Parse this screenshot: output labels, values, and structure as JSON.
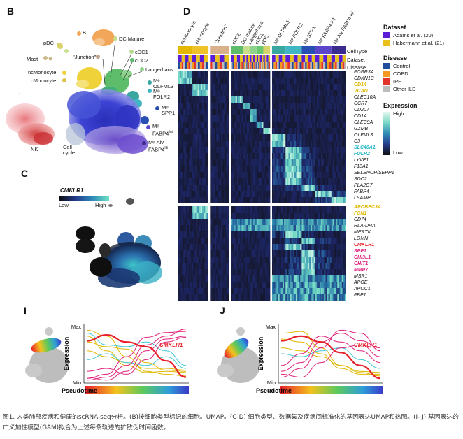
{
  "panels": {
    "B": "B",
    "C": "C",
    "D": "D",
    "I": "I",
    "J": "J"
  },
  "umap_b": {
    "labels": [
      "B",
      "pDC",
      "DC Mature",
      "cDC1",
      "cDC2",
      "Langerhans",
      "\"Junction\"",
      "Mast",
      "ncMonocyte",
      "cMonocyte",
      "T",
      "Mᵠ OLFML3",
      "Mᵠ FOLR2",
      "Mᵠ SPP1",
      "Mᵠ FABP4 Int",
      "Mᵠ Alv FABP4 Hi",
      "NK",
      "Cell cycle"
    ]
  },
  "umap_b_display": {
    "b": "B",
    "pdc": "pDC",
    "dcmature": "DC Mature",
    "cdc1": "cDC1",
    "cdc2": "cDC2",
    "langerhans": "Langerhans",
    "junction": "\"Junction\"",
    "mast": "Mast",
    "ncmono": "ncMonocyte",
    "cmono": "cMonocyte",
    "t": "T",
    "olfml3_a": "Mᵠ",
    "olfml3_b": "OLFML3",
    "folr2_a": "Mᵠ",
    "folr2_b": "FOLR2",
    "spp1_a": "Mᵠ",
    "spp1_b": "SPP1",
    "fabp4int_a": "Mᵠ",
    "fabp4int_b": "FABP4",
    "fabp4int_sup": "Int",
    "fabp4hi_a": "Mᵠ Alv",
    "fabp4hi_b": "FABP4",
    "fabp4hi_sup": "Hi",
    "nk": "NK",
    "cellcycle_a": "Cell",
    "cellcycle_b": "cycle"
  },
  "umap_c": {
    "gene": "CMKLR1",
    "low": "Low",
    "high": "High"
  },
  "heatmap": {
    "column_groups": [
      "ncMonocyte",
      "cMonocyte",
      "\"Junction\"",
      "cDC2",
      "DC mature",
      "Langerhans",
      "cDC1",
      "pDC",
      "Mᵠ OLFML3",
      "Mᵠ FOLR2",
      "Mᵠ SPP1",
      "Mᵠ FABP4 Int",
      "Mᵠ Alv FABP4 Hi"
    ],
    "row_annotations": [
      "CellType",
      "Dataset",
      "Disease"
    ],
    "genes": [
      {
        "name": "FCGR3A",
        "color": "#111111"
      },
      {
        "name": "CDKN1C",
        "color": "#111111"
      },
      {
        "name": "CD14",
        "color": "#e0b800"
      },
      {
        "name": "VCAN",
        "color": "#e0b800"
      },
      {
        "name": "CLEC10A",
        "color": "#111111"
      },
      {
        "name": "CCR7",
        "color": "#111111"
      },
      {
        "name": "CD207",
        "color": "#111111"
      },
      {
        "name": "CD1A",
        "color": "#111111"
      },
      {
        "name": "CLEC9A",
        "color": "#111111"
      },
      {
        "name": "GZMB",
        "color": "#111111"
      },
      {
        "name": "OLFML3",
        "color": "#111111"
      },
      {
        "name": "C3",
        "color": "#111111"
      },
      {
        "name": "SLC40A1",
        "color": "#22b8c8"
      },
      {
        "name": "FOLR2",
        "color": "#22b8c8"
      },
      {
        "name": "LYVE1",
        "color": "#111111"
      },
      {
        "name": "F13A1",
        "color": "#111111"
      },
      {
        "name": "SELENOP/SEPP1",
        "color": "#111111"
      },
      {
        "name": "SDC2",
        "color": "#111111"
      },
      {
        "name": "PLA2G7",
        "color": "#111111"
      },
      {
        "name": "FABP4",
        "color": "#111111"
      },
      {
        "name": "LSAMP",
        "color": "#111111"
      },
      {
        "name": "APOBEC3A",
        "color": "#e0b800"
      },
      {
        "name": "FCN1",
        "color": "#e0b800"
      },
      {
        "name": "CD74",
        "color": "#111111"
      },
      {
        "name": "HLA-DRA",
        "color": "#111111"
      },
      {
        "name": "MERTK",
        "color": "#111111"
      },
      {
        "name": "LGMN",
        "color": "#111111"
      },
      {
        "name": "CMKLR1",
        "color": "#e8202a"
      },
      {
        "name": "SPP1",
        "color": "#e0207a"
      },
      {
        "name": "CHI3L1",
        "color": "#e0207a"
      },
      {
        "name": "CHIT1",
        "color": "#e0207a"
      },
      {
        "name": "MMP7",
        "color": "#e0207a"
      },
      {
        "name": "MSR1",
        "color": "#111111"
      },
      {
        "name": "APOE",
        "color": "#111111"
      },
      {
        "name": "APOC1",
        "color": "#111111"
      },
      {
        "name": "FBP1",
        "color": "#111111"
      }
    ],
    "legend": {
      "dataset_title": "Dataset",
      "dataset_items": [
        {
          "label": "Adams et al. (20)",
          "color": "#5b1ed6"
        },
        {
          "label": "Habermann et al. (21)",
          "color": "#e8c21a"
        }
      ],
      "disease_title": "Disease",
      "disease_items": [
        {
          "label": "Control",
          "color": "#1f4e9c"
        },
        {
          "label": "COPD",
          "color": "#f39a1e"
        },
        {
          "label": "IPF",
          "color": "#e2342b"
        },
        {
          "label": "Other ILD",
          "color": "#bdbdbd"
        }
      ],
      "expression_title": "Expression",
      "expression_high": "High",
      "expression_low": "Low"
    }
  },
  "chart_data": [
    {
      "type": "line",
      "panel": "I",
      "title": "",
      "xlabel": "Pseudotime",
      "ylabel": "Expression",
      "y_tick_labels": [
        "Max",
        "Min"
      ],
      "highlight": "CMKLR1",
      "x": [
        0,
        0.2,
        0.4,
        0.6,
        0.8,
        1.0
      ],
      "series": [
        {
          "name": "CMKLR1",
          "color": "#e8202a",
          "values": [
            0.72,
            0.82,
            0.7,
            0.62,
            0.38,
            0.1
          ]
        },
        {
          "name": "yellow-1",
          "color": "#e0b800",
          "values": [
            0.9,
            0.8,
            0.45,
            0.2,
            0.15,
            0.12
          ]
        },
        {
          "name": "yellow-2",
          "color": "#e0b800",
          "values": [
            0.8,
            0.55,
            0.3,
            0.18,
            0.2,
            0.18
          ]
        },
        {
          "name": "yellow-3",
          "color": "#e0b800",
          "values": [
            0.7,
            0.62,
            0.58,
            0.35,
            0.22,
            0.2
          ]
        },
        {
          "name": "yellow-4",
          "color": "#e0b800",
          "values": [
            0.55,
            0.45,
            0.35,
            0.25,
            0.25,
            0.22
          ]
        },
        {
          "name": "cyan-1",
          "color": "#3bc9d5",
          "values": [
            0.85,
            0.65,
            0.62,
            0.7,
            0.55,
            0.3
          ]
        },
        {
          "name": "cyan-2",
          "color": "#3bc9d5",
          "values": [
            0.4,
            0.5,
            0.35,
            0.3,
            0.45,
            0.25
          ]
        },
        {
          "name": "magenta-1",
          "color": "#e0207a",
          "values": [
            0.05,
            0.1,
            0.3,
            0.65,
            0.8,
            0.92
          ]
        },
        {
          "name": "magenta-2",
          "color": "#e0207a",
          "values": [
            0.08,
            0.15,
            0.45,
            0.78,
            0.86,
            0.88
          ]
        },
        {
          "name": "magenta-3",
          "color": "#e0207a",
          "values": [
            0.1,
            0.05,
            0.2,
            0.55,
            0.75,
            0.8
          ]
        },
        {
          "name": "magenta-4",
          "color": "#e0207a",
          "values": [
            0.2,
            0.25,
            0.15,
            0.4,
            0.7,
            0.78
          ]
        }
      ]
    },
    {
      "type": "line",
      "panel": "J",
      "title": "",
      "xlabel": "Pseudotime",
      "ylabel": "Expression",
      "y_tick_labels": [
        "Max",
        "Min"
      ],
      "highlight": "CMKLR1",
      "x": [
        0,
        0.2,
        0.4,
        0.6,
        0.8,
        1.0
      ],
      "series": [
        {
          "name": "CMKLR1",
          "color": "#e8202a",
          "values": [
            0.72,
            0.8,
            0.7,
            0.52,
            0.3,
            0.08
          ]
        },
        {
          "name": "yellow-1",
          "color": "#e0b800",
          "values": [
            0.85,
            0.88,
            0.6,
            0.3,
            0.18,
            0.12
          ]
        },
        {
          "name": "yellow-2",
          "color": "#e0b800",
          "values": [
            0.75,
            0.7,
            0.5,
            0.25,
            0.15,
            0.15
          ]
        },
        {
          "name": "yellow-3",
          "color": "#e0b800",
          "values": [
            0.6,
            0.55,
            0.45,
            0.3,
            0.2,
            0.18
          ]
        },
        {
          "name": "cyan-1",
          "color": "#3bc9d5",
          "values": [
            0.5,
            0.45,
            0.55,
            0.6,
            0.4,
            0.25
          ]
        },
        {
          "name": "magenta-1",
          "color": "#e0207a",
          "values": [
            0.2,
            0.35,
            0.7,
            0.85,
            0.72,
            0.6
          ]
        },
        {
          "name": "magenta-2",
          "color": "#e0207a",
          "values": [
            0.1,
            0.25,
            0.6,
            0.9,
            0.85,
            0.55
          ]
        },
        {
          "name": "magenta-3",
          "color": "#e0207a",
          "values": [
            0.3,
            0.5,
            0.8,
            0.7,
            0.55,
            0.35
          ]
        },
        {
          "name": "magenta-4",
          "color": "#e0207a",
          "values": [
            0.15,
            0.1,
            0.35,
            0.6,
            0.65,
            0.45
          ]
        }
      ]
    }
  ],
  "caption": "图1. 人类肺部疾病和健康的scRNA-seq分析。(B)按细胞类型标记的细胞。UMAP。(C-D) 细胞类型、数据集及疾病间标准化的基因表达UMAP和热图。(I- J) 基因表达的广义加性模型(GAM)拟合为上述每条轨迹的扩散伪时间函数。"
}
